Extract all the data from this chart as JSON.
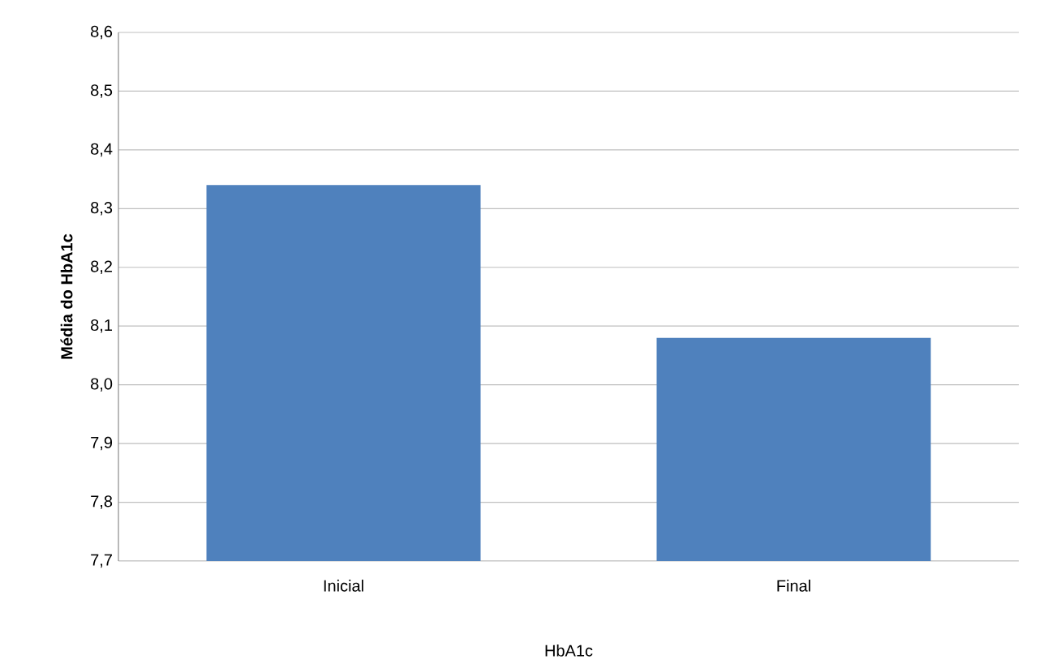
{
  "chart_data": {
    "type": "bar",
    "xlabel": "HbA1c",
    "ylabel": "Média do HbA1c",
    "categories": [
      "Inicial",
      "Final"
    ],
    "values": [
      8.34,
      8.08
    ],
    "color": "#4f81bd",
    "ylim": [
      7.7,
      8.6
    ],
    "yticks": [
      {
        "value": 7.7,
        "label": "7,7"
      },
      {
        "value": 7.8,
        "label": "7,8"
      },
      {
        "value": 7.9,
        "label": "7,9"
      },
      {
        "value": 8.0,
        "label": "8,0"
      },
      {
        "value": 8.1,
        "label": "8,1"
      },
      {
        "value": 8.2,
        "label": "8,2"
      },
      {
        "value": 8.3,
        "label": "8,3"
      },
      {
        "value": 8.4,
        "label": "8,4"
      },
      {
        "value": 8.5,
        "label": "8,5"
      },
      {
        "value": 8.6,
        "label": "8,6"
      }
    ],
    "grid": "y"
  }
}
